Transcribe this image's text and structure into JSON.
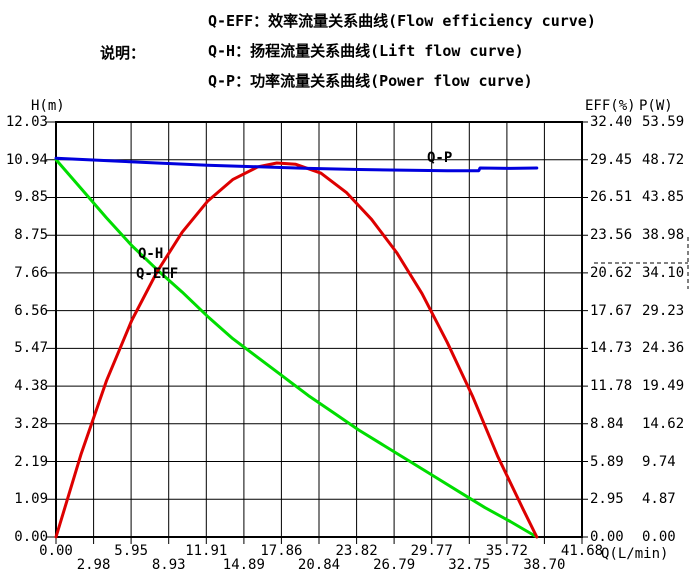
{
  "legend": {
    "label": "说明：",
    "lines": [
      "Q-EFF：效率流量关系曲线(Flow efficiency curve)",
      "Q-H：扬程流量关系曲线(Lift flow curve)",
      "Q-P：功率流量关系曲线(Power flow curve)"
    ]
  },
  "axes": {
    "left": {
      "title": "H(m)",
      "ticks": [
        "12.03",
        "10.94",
        "9.85",
        "8.75",
        "7.66",
        "6.56",
        "5.47",
        "4.38",
        "3.28",
        "2.19",
        "1.09",
        "0.00"
      ]
    },
    "right_eff": {
      "title": "EFF(%)",
      "ticks": [
        "32.40",
        "29.45",
        "26.51",
        "23.56",
        "20.62",
        "17.67",
        "14.73",
        "11.78",
        "8.84",
        "5.89",
        "2.95",
        "0.00"
      ]
    },
    "right_p": {
      "title": "P(W)",
      "ticks": [
        "53.59",
        "48.72",
        "43.85",
        "38.98",
        "34.10",
        "29.23",
        "24.36",
        "19.49",
        "14.62",
        "9.74",
        "4.87",
        "0.00"
      ]
    },
    "bottom": {
      "title": "Q(L/min)",
      "ticks": [
        "0.00",
        "2.98",
        "5.95",
        "8.93",
        "11.91",
        "14.89",
        "17.86",
        "20.84",
        "23.82",
        "26.79",
        "29.77",
        "32.75",
        "35.72",
        "38.70",
        "41.68"
      ]
    }
  },
  "curve_labels": {
    "qh": "Q-H",
    "qeff": "Q-EFF",
    "qp": "Q-P"
  },
  "colors": {
    "lift": "#00dd00",
    "efficiency": "#dd0000",
    "power": "#0000dd",
    "grid": "#000000",
    "background": "#ffffff"
  },
  "chart_data": {
    "type": "line",
    "title": "",
    "xlabel": "Q(L/min)",
    "x_range": [
      0,
      41.68
    ],
    "x_ticks": [
      0.0,
      2.98,
      5.95,
      8.93,
      11.91,
      14.89,
      17.86,
      20.84,
      23.82,
      26.79,
      29.77,
      32.75,
      35.72,
      38.7,
      41.68
    ],
    "grid": true,
    "y_axes": [
      {
        "label": "H(m)",
        "range": [
          0,
          12.03
        ],
        "side": "left"
      },
      {
        "label": "EFF(%)",
        "range": [
          0,
          32.4
        ],
        "side": "right"
      },
      {
        "label": "P(W)",
        "range": [
          0,
          53.59
        ],
        "side": "right"
      }
    ],
    "series": [
      {
        "id": "Q-H",
        "name": "扬程流量关系曲线 (Lift flow curve)",
        "y_axis": "H(m)",
        "axis_max": 12.03,
        "color": "#00dd00",
        "x": [
          0,
          2,
          4,
          6,
          8,
          10,
          12,
          14,
          16,
          18,
          20,
          22,
          24,
          26,
          28,
          30,
          32,
          34,
          36,
          38.1
        ],
        "y": [
          10.94,
          10.1,
          9.25,
          8.45,
          7.75,
          7.1,
          6.4,
          5.75,
          5.2,
          4.65,
          4.1,
          3.6,
          3.1,
          2.65,
          2.2,
          1.75,
          1.3,
          0.85,
          0.45,
          0
        ]
      },
      {
        "id": "Q-EFF",
        "name": "效率流量关系曲线 (Flow efficiency curve)",
        "y_axis": "EFF(%)",
        "axis_max": 32.4,
        "color": "#dd0000",
        "x": [
          0,
          2,
          4,
          6,
          8,
          10,
          12,
          14,
          16,
          17.5,
          19,
          21,
          23,
          25,
          27,
          29,
          31,
          33,
          35,
          37,
          38.1
        ],
        "y": [
          0,
          6.5,
          12.2,
          16.9,
          20.7,
          23.8,
          26.2,
          27.9,
          28.9,
          29.2,
          29.1,
          28.4,
          26.9,
          24.8,
          22.2,
          19.0,
          15.2,
          11.0,
          6.3,
          2.2,
          0
        ]
      },
      {
        "id": "Q-P",
        "name": "功率流量关系曲线 (Power flow curve)",
        "y_axis": "P(W)",
        "axis_max": 53.59,
        "color": "#0000dd",
        "x": [
          0,
          4,
          8,
          12,
          16,
          20,
          24,
          28,
          31,
          33.5,
          33.6,
          36,
          38.1
        ],
        "y": [
          48.9,
          48.6,
          48.3,
          48.0,
          47.8,
          47.6,
          47.45,
          47.35,
          47.3,
          47.3,
          47.65,
          47.6,
          47.65
        ]
      }
    ],
    "annotations": [
      {
        "type": "dashed-bracket",
        "location": "right-axis-labels",
        "marks_eff": "20.62",
        "marks_p": "34.10"
      }
    ]
  }
}
